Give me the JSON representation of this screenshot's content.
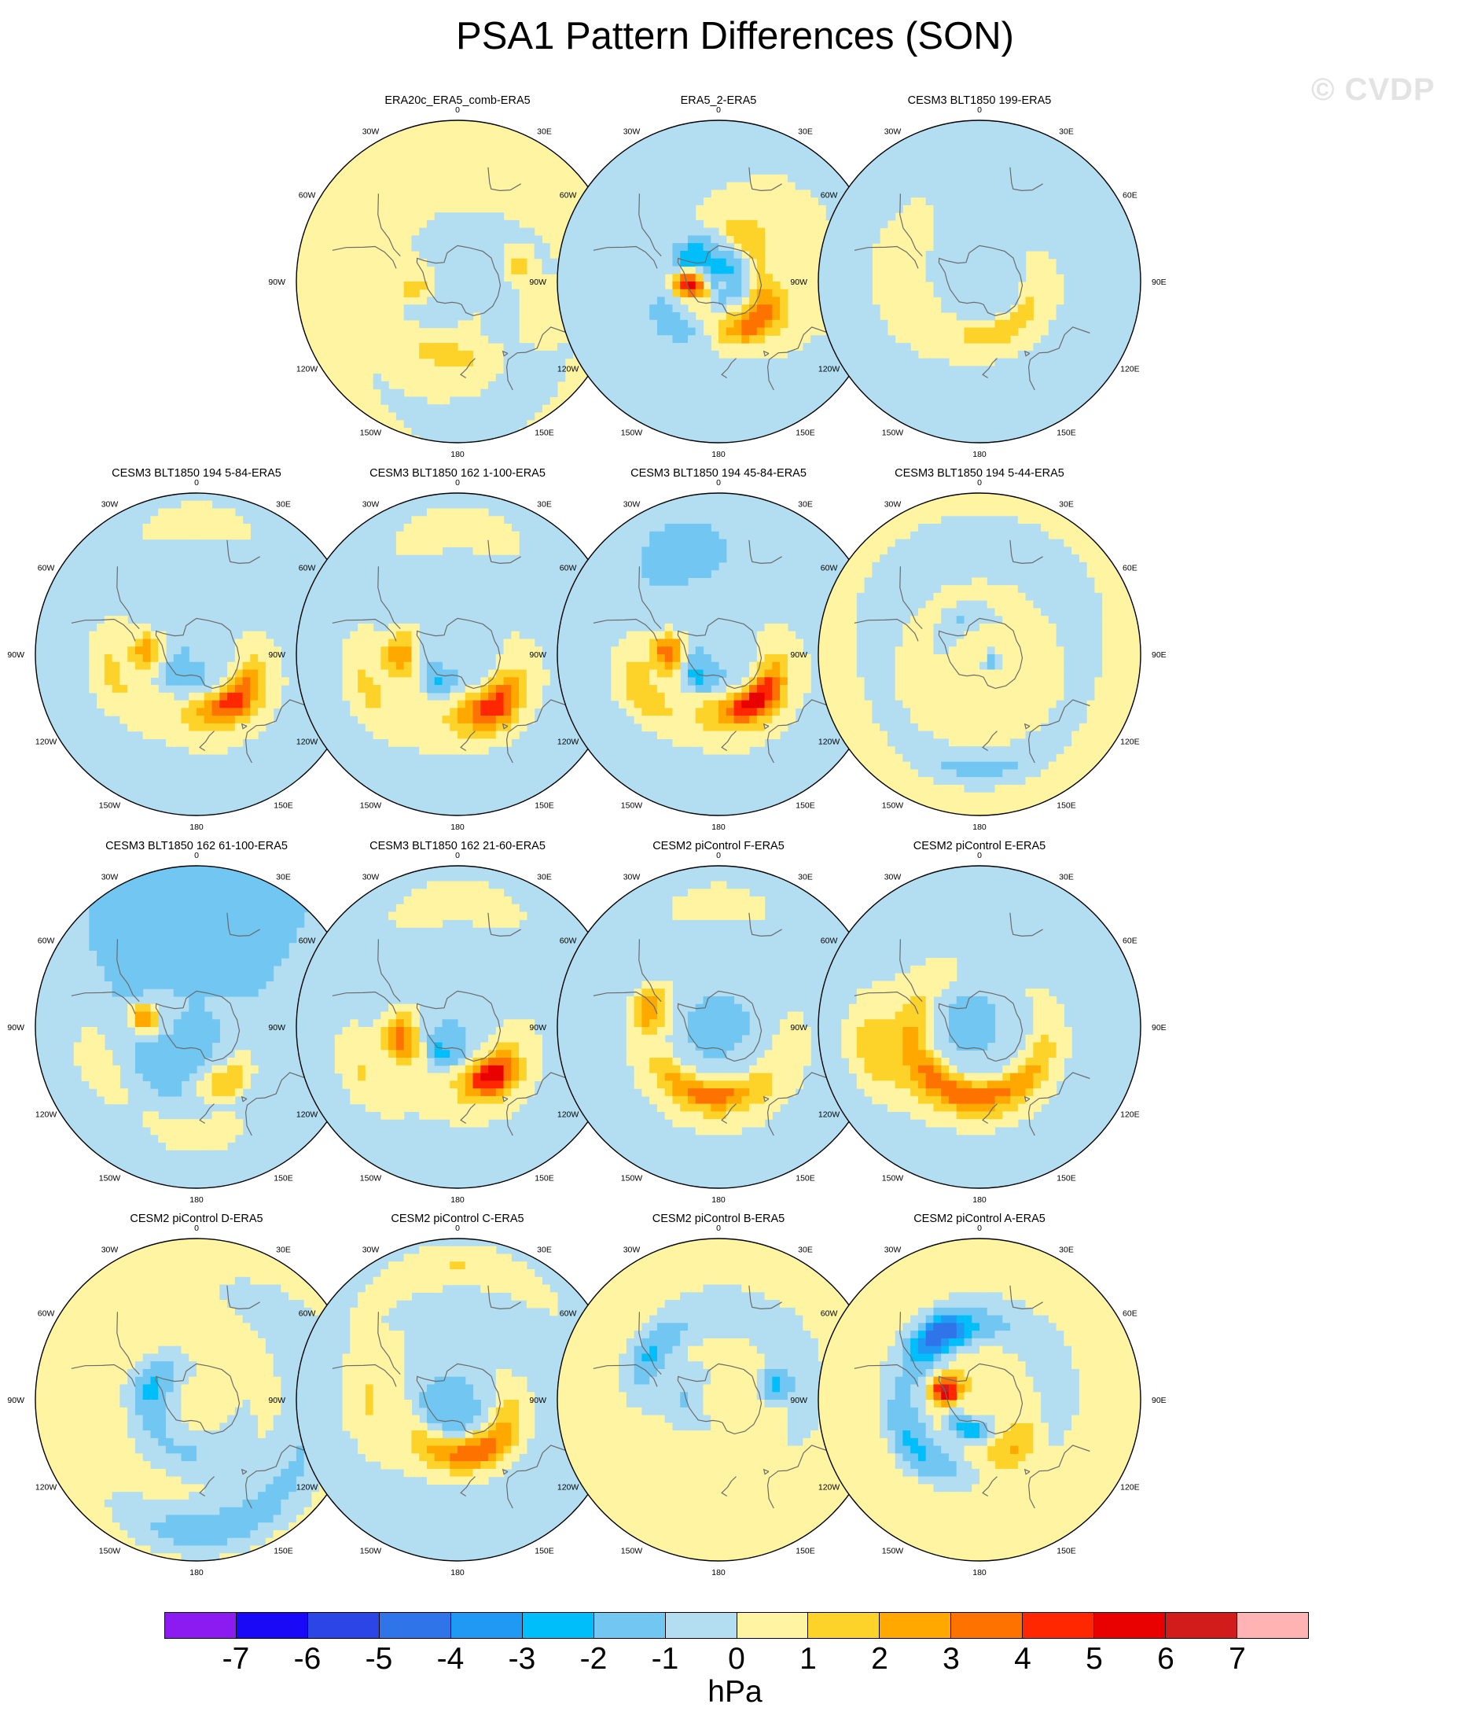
{
  "title": "PSA1 Pattern Differences (SON)",
  "watermark": "© CVDP",
  "projection": "south-polar-stereographic",
  "longitude_labels": [
    "0",
    "30E",
    "60E",
    "90E",
    "120E",
    "150E",
    "180",
    "150W",
    "120W",
    "90W",
    "60W",
    "30W"
  ],
  "panels": [
    {
      "title": "ERA20c_ERA5_comb-ERA5",
      "row": 0,
      "col": 1,
      "base": 0,
      "features": [
        {
          "v": 1,
          "lon": 0,
          "lat": -15,
          "sx": 22,
          "sy": 12
        },
        {
          "v": -1,
          "lon": 120,
          "lat": -58,
          "sx": 28,
          "sy": 8
        },
        {
          "v": 1,
          "lon": 110,
          "lat": -48,
          "sx": 9,
          "sy": 6
        },
        {
          "v": 2,
          "lon": 75,
          "lat": -56,
          "sx": 7,
          "sy": 5
        },
        {
          "v": -1,
          "lon": 220,
          "lat": -68,
          "sx": 12,
          "sy": 8
        },
        {
          "v": 1,
          "lon": 180,
          "lat": -62,
          "sx": 20,
          "sy": 6
        },
        {
          "v": 2,
          "lon": 260,
          "lat": -67,
          "sx": 5,
          "sy": 6
        },
        {
          "v": 2,
          "lon": 188,
          "lat": -48,
          "sx": 15,
          "sy": 5
        }
      ]
    },
    {
      "title": "ERA5_2-ERA5",
      "row": 0,
      "col": 2,
      "base": 0,
      "features": [
        {
          "v": -1,
          "lon": 200,
          "lat": -22,
          "sx": 40,
          "sy": 12
        },
        {
          "v": -3,
          "lon": 300,
          "lat": -80,
          "sx": 6,
          "sy": 12
        },
        {
          "v": -2,
          "lon": 330,
          "lat": -68,
          "sx": 14,
          "sy": 6
        },
        {
          "v": -2,
          "lon": 60,
          "lat": -80,
          "sx": 20,
          "sy": 5
        },
        {
          "v": 2,
          "lon": 30,
          "lat": -60,
          "sx": 12,
          "sy": 7
        },
        {
          "v": 4,
          "lon": 135,
          "lat": -60,
          "sx": 14,
          "sy": 7
        },
        {
          "v": 7,
          "lon": 270,
          "lat": -75,
          "sx": 6,
          "sy": 7
        },
        {
          "v": -2,
          "lon": 230,
          "lat": -55,
          "sx": 12,
          "sy": 6
        },
        {
          "v": 1,
          "lon": 100,
          "lat": -40,
          "sx": 20,
          "sy": 8
        }
      ]
    },
    {
      "title": "CESM3 BLT1850 199-ERA5",
      "row": 0,
      "col": 3,
      "base": 0,
      "features": [
        {
          "v": -1,
          "lon": 0,
          "lat": -75,
          "sx": 360,
          "sy": 10
        },
        {
          "v": 2,
          "lon": 150,
          "lat": -60,
          "sx": 24,
          "sy": 6
        },
        {
          "v": 1,
          "lon": 250,
          "lat": -50,
          "sx": 18,
          "sy": 8
        },
        {
          "v": -1,
          "lon": 180,
          "lat": -20,
          "sx": 30,
          "sy": 10
        }
      ]
    },
    {
      "title": "CESM3 BLT1850 194 5-84-ERA5",
      "row": 1,
      "col": 0,
      "base": -1,
      "features": [
        {
          "v": 1,
          "lon": 150,
          "lat": -50,
          "sx": 40,
          "sy": 14
        },
        {
          "v": 3,
          "lon": 140,
          "lat": -57,
          "sx": 14,
          "sy": 6
        },
        {
          "v": 2,
          "lon": 275,
          "lat": -62,
          "sx": 7,
          "sy": 6
        },
        {
          "v": -2,
          "lon": 215,
          "lat": -72,
          "sx": 10,
          "sy": 6
        },
        {
          "v": 1,
          "lon": 260,
          "lat": -40,
          "sx": 22,
          "sy": 10
        },
        {
          "v": 1,
          "lon": 0,
          "lat": -15,
          "sx": 20,
          "sy": 8
        }
      ]
    },
    {
      "title": "CESM3 BLT1850 162 1-100-ERA5",
      "row": 1,
      "col": 1,
      "base": -1,
      "features": [
        {
          "v": 1,
          "lon": 150,
          "lat": -50,
          "sx": 40,
          "sy": 14
        },
        {
          "v": 3,
          "lon": 145,
          "lat": -55,
          "sx": 12,
          "sy": 7
        },
        {
          "v": -3,
          "lon": 215,
          "lat": -70,
          "sx": 7,
          "sy": 5
        },
        {
          "v": 2,
          "lon": 270,
          "lat": -58,
          "sx": 10,
          "sy": 7
        },
        {
          "v": 1,
          "lon": 0,
          "lat": -20,
          "sx": 24,
          "sy": 10
        },
        {
          "v": 1,
          "lon": 250,
          "lat": -35,
          "sx": 25,
          "sy": 10
        }
      ]
    },
    {
      "title": "CESM3 BLT1850 194 45-84-ERA5",
      "row": 1,
      "col": 2,
      "base": -1,
      "features": [
        {
          "v": 1,
          "lon": 150,
          "lat": -50,
          "sx": 45,
          "sy": 14
        },
        {
          "v": 4,
          "lon": 140,
          "lat": -57,
          "sx": 14,
          "sy": 6
        },
        {
          "v": 3,
          "lon": 272,
          "lat": -62,
          "sx": 7,
          "sy": 6
        },
        {
          "v": -3,
          "lon": 225,
          "lat": -72,
          "sx": 8,
          "sy": 5
        },
        {
          "v": -2,
          "lon": 340,
          "lat": -35,
          "sx": 8,
          "sy": 5
        },
        {
          "v": 1,
          "lon": 250,
          "lat": -40,
          "sx": 20,
          "sy": 10
        }
      ]
    },
    {
      "title": "CESM3 BLT1850 194 5-44-ERA5",
      "row": 1,
      "col": 3,
      "base": 1,
      "features": [
        {
          "v": -1,
          "lon": 0,
          "lat": -30,
          "sx": 80,
          "sy": 16
        },
        {
          "v": -1,
          "lon": 180,
          "lat": -25,
          "sx": 30,
          "sy": 8
        },
        {
          "v": -1,
          "lon": 330,
          "lat": -68,
          "sx": 18,
          "sy": 6
        },
        {
          "v": -2,
          "lon": 120,
          "lat": -82,
          "sx": 5,
          "sy": 3
        }
      ]
    },
    {
      "title": "CESM3 BLT1850 162 61-100-ERA5",
      "row": 2,
      "col": 0,
      "base": -1,
      "features": [
        {
          "v": -2,
          "lon": 330,
          "lat": -45,
          "sx": 14,
          "sy": 8
        },
        {
          "v": 3,
          "lon": 280,
          "lat": -60,
          "sx": 6,
          "sy": 6
        },
        {
          "v": -2,
          "lon": 215,
          "lat": -62,
          "sx": 12,
          "sy": 7
        },
        {
          "v": 2,
          "lon": 150,
          "lat": -55,
          "sx": 12,
          "sy": 7
        },
        {
          "v": 1,
          "lon": 180,
          "lat": -30,
          "sx": 20,
          "sy": 8
        },
        {
          "v": 1,
          "lon": 250,
          "lat": -30,
          "sx": 15,
          "sy": 8
        }
      ]
    },
    {
      "title": "CESM3 BLT1850 162 21-60-ERA5",
      "row": 2,
      "col": 1,
      "base": -1,
      "features": [
        {
          "v": 1,
          "lon": 150,
          "lat": -50,
          "sx": 35,
          "sy": 14
        },
        {
          "v": 4,
          "lon": 145,
          "lat": -57,
          "sx": 10,
          "sy": 7
        },
        {
          "v": -3,
          "lon": 210,
          "lat": -72,
          "sx": 7,
          "sy": 6
        },
        {
          "v": 3,
          "lon": 260,
          "lat": -57,
          "sx": 10,
          "sy": 7
        },
        {
          "v": 1,
          "lon": 0,
          "lat": -20,
          "sx": 25,
          "sy": 10
        },
        {
          "v": 1,
          "lon": 245,
          "lat": -30,
          "sx": 20,
          "sy": 10
        }
      ]
    },
    {
      "title": "CESM2 piControl F-ERA5",
      "row": 2,
      "col": 2,
      "base": -1,
      "features": [
        {
          "v": 1,
          "lon": 180,
          "lat": -45,
          "sx": 60,
          "sy": 12
        },
        {
          "v": 2,
          "lon": 190,
          "lat": -52,
          "sx": 20,
          "sy": 5
        },
        {
          "v": 2,
          "lon": 285,
          "lat": -50,
          "sx": 8,
          "sy": 7
        },
        {
          "v": 1,
          "lon": 0,
          "lat": -20,
          "sx": 18,
          "sy": 8
        },
        {
          "v": -2,
          "lon": 320,
          "lat": -80,
          "sx": 25,
          "sy": 4
        }
      ]
    },
    {
      "title": "CESM2 piControl E-ERA5",
      "row": 2,
      "col": 3,
      "base": -1,
      "features": [
        {
          "v": 1,
          "lon": 200,
          "lat": -45,
          "sx": 70,
          "sy": 12
        },
        {
          "v": 2,
          "lon": 195,
          "lat": -52,
          "sx": 40,
          "sy": 6
        },
        {
          "v": -2,
          "lon": 300,
          "lat": -78,
          "sx": 10,
          "sy": 4
        },
        {
          "v": 1,
          "lon": 260,
          "lat": -25,
          "sx": 20,
          "sy": 10
        }
      ]
    },
    {
      "title": "CESM2 piControl D-ERA5",
      "row": 3,
      "col": 0,
      "base": 1,
      "features": [
        {
          "v": -1,
          "lon": 200,
          "lat": -60,
          "sx": 40,
          "sy": 10
        },
        {
          "v": -1,
          "lon": 90,
          "lat": -25,
          "sx": 60,
          "sy": 15
        },
        {
          "v": -1,
          "lon": 180,
          "lat": -15,
          "sx": 30,
          "sy": 10
        },
        {
          "v": -1,
          "lon": 290,
          "lat": -65,
          "sx": 15,
          "sy": 10
        }
      ]
    },
    {
      "title": "CESM2 piControl C-ERA5",
      "row": 3,
      "col": 1,
      "base": -1,
      "features": [
        {
          "v": 1,
          "lon": 150,
          "lat": -55,
          "sx": 40,
          "sy": 10
        },
        {
          "v": 2,
          "lon": 160,
          "lat": -60,
          "sx": 20,
          "sy": 6
        },
        {
          "v": 1,
          "lon": 0,
          "lat": -15,
          "sx": 40,
          "sy": 10
        },
        {
          "v": 1,
          "lon": 270,
          "lat": -40,
          "sx": 30,
          "sy": 12
        },
        {
          "v": -2,
          "lon": 240,
          "lat": -75,
          "sx": 15,
          "sy": 6
        }
      ]
    },
    {
      "title": "CESM2 piControl B-ERA5",
      "row": 3,
      "col": 2,
      "base": 1,
      "features": [
        {
          "v": -1,
          "lon": 30,
          "lat": -40,
          "sx": 60,
          "sy": 12
        },
        {
          "v": -1,
          "lon": 270,
          "lat": -70,
          "sx": 18,
          "sy": 8
        },
        {
          "v": -2,
          "lon": 75,
          "lat": -58,
          "sx": 6,
          "sy": 6
        },
        {
          "v": -1,
          "lon": 300,
          "lat": -45,
          "sx": 15,
          "sy": 8
        }
      ]
    },
    {
      "title": "CESM2 piControl A-ERA5",
      "row": 3,
      "col": 3,
      "base": 1,
      "features": [
        {
          "v": -1,
          "lon": 0,
          "lat": -45,
          "sx": 90,
          "sy": 12
        },
        {
          "v": -3,
          "lon": 330,
          "lat": -48,
          "sx": 12,
          "sy": 7
        },
        {
          "v": 7,
          "lon": 285,
          "lat": -70,
          "sx": 5,
          "sy": 5
        },
        {
          "v": -3,
          "lon": 200,
          "lat": -72,
          "sx": 10,
          "sy": 5
        },
        {
          "v": 1,
          "lon": 160,
          "lat": -45,
          "sx": 35,
          "sy": 12
        },
        {
          "v": 3,
          "lon": 145,
          "lat": -55,
          "sx": 12,
          "sy": 7
        },
        {
          "v": -1,
          "lon": 230,
          "lat": -45,
          "sx": 20,
          "sy": 8
        }
      ]
    }
  ],
  "colorbar": {
    "unit": "hPa",
    "tick_labels": [
      "-7",
      "-6",
      "-5",
      "-4",
      "-3",
      "-2",
      "-1",
      "0",
      "1",
      "2",
      "3",
      "4",
      "5",
      "6",
      "7"
    ],
    "colors": [
      "#8c1bf2",
      "#1a09f7",
      "#2b45e6",
      "#2f74e8",
      "#1f99f3",
      "#00bef9",
      "#72c6f2",
      "#b3def2",
      "#fff4a1",
      "#fdd32a",
      "#fea800",
      "#fe7300",
      "#fe2700",
      "#e90000",
      "#d21c1c",
      "#ffb3b3"
    ]
  }
}
